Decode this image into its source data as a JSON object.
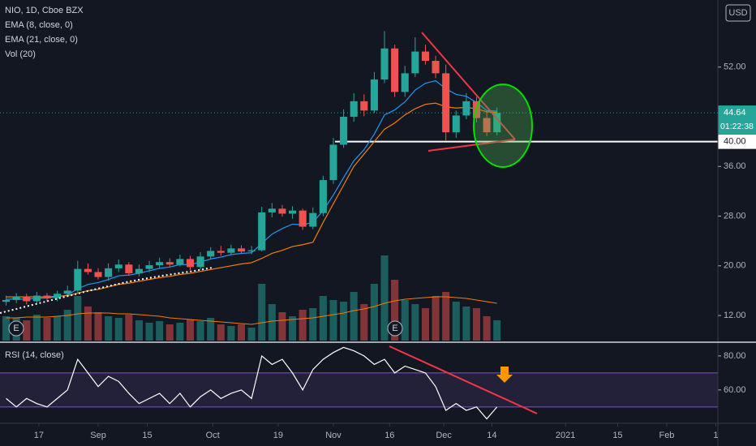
{
  "chart_data": {
    "type": "candlestick",
    "title": "NIO, 1D, Cboe BZX",
    "indicators": [
      "EMA (8, close, 0)",
      "EMA (21, close, 0)",
      "Vol (20)"
    ],
    "currency": "USD",
    "last_price": 44.64,
    "last_price_label": "44.64",
    "countdown": "01:22:38",
    "level": 40,
    "level_label": "40.00",
    "events": [
      "E",
      "E"
    ],
    "up_color": "#26a69a",
    "down_color": "#ef5350",
    "xlim": [
      -0.6,
      69.6
    ],
    "xticks": [
      {
        "value": 3.2,
        "label": "17"
      },
      {
        "value": 9.0,
        "label": "Sep"
      },
      {
        "value": 13.8,
        "label": "15"
      },
      {
        "value": 20.2,
        "label": "Oct"
      },
      {
        "value": 26.6,
        "label": "19"
      },
      {
        "value": 32.0,
        "label": "Nov"
      },
      {
        "value": 37.5,
        "label": "16"
      },
      {
        "value": 42.8,
        "label": "Dec"
      },
      {
        "value": 47.5,
        "label": "14"
      },
      {
        "value": 54.7,
        "label": "2021"
      },
      {
        "value": 59.8,
        "label": "15"
      },
      {
        "value": 64.6,
        "label": "Feb"
      },
      {
        "value": 69.4,
        "label": "1"
      }
    ],
    "ylim": [
      7.7,
      62.8
    ],
    "yticks": [
      {
        "value": 52,
        "label": "52.00"
      },
      {
        "value": 36,
        "label": "36.00"
      },
      {
        "value": 28,
        "label": "28.00"
      },
      {
        "value": 20,
        "label": "20.00"
      },
      {
        "value": 12,
        "label": "12.00"
      }
    ],
    "open": [
      14.2,
      14.5,
      15,
      14.3,
      15.2,
      14.8,
      15.5,
      16,
      19.5,
      19,
      18.2,
      19.6,
      20.2,
      18.8,
      19.5,
      20.1,
      20.6,
      20.2,
      21.1,
      19.8,
      21.5,
      22.4,
      22.1,
      22.8,
      22.3,
      22.5,
      28.6,
      29.2,
      28.4,
      28.9,
      26.3,
      28.5,
      33.8,
      39.5,
      44,
      46.5,
      45,
      50,
      55,
      48,
      51,
      54.5,
      53,
      51,
      41.5,
      44.2,
      46.5,
      43.8,
      41.5
    ],
    "high": [
      15.2,
      15.6,
      15.5,
      15.8,
      15.6,
      16,
      16.8,
      20.8,
      20.4,
      19.6,
      20.4,
      21,
      20.6,
      20.2,
      20.8,
      21.3,
      21.2,
      21.8,
      21.6,
      22.2,
      23,
      23.2,
      23.4,
      23.3,
      23.2,
      29.5,
      30.1,
      29.8,
      29.6,
      29.2,
      29.4,
      34.5,
      40.6,
      45.2,
      47.8,
      47.6,
      51.2,
      57.8,
      55.6,
      52.2,
      56.8,
      55.6,
      53.8,
      52.4,
      45,
      47.8,
      47.2,
      45,
      45.5
    ],
    "low": [
      13.6,
      14,
      13.8,
      14,
      14.2,
      14.3,
      15,
      15.7,
      18.6,
      17.8,
      17.6,
      19,
      18.4,
      18.3,
      19,
      19.6,
      19.8,
      19.9,
      19.3,
      19.4,
      21,
      21.6,
      21.8,
      22,
      21.9,
      22.3,
      27.8,
      27.9,
      27.6,
      25.8,
      25.9,
      28,
      33.2,
      39,
      43.2,
      44.1,
      44.6,
      49.4,
      47.2,
      47.2,
      50.4,
      52.4,
      50.2,
      40.2,
      40.6,
      43.6,
      43.1,
      40.9,
      41
    ],
    "close": [
      14.5,
      15,
      14.3,
      15.2,
      14.8,
      15.5,
      16,
      19.5,
      19,
      18.2,
      19.6,
      20.2,
      18.8,
      19.5,
      20.1,
      20.6,
      20.2,
      21.1,
      19.8,
      21.5,
      22.4,
      22.1,
      22.8,
      22.3,
      22.5,
      28.6,
      29.2,
      28.4,
      28.9,
      26.3,
      28.5,
      33.8,
      39.5,
      44,
      46.5,
      45,
      50,
      55,
      48,
      51,
      54.5,
      53,
      51,
      41.5,
      44.2,
      46.5,
      43.8,
      41.5,
      44.64
    ],
    "series": [
      {
        "name": "EMA (8, close, 0)",
        "color": "#2196f3",
        "values": [
          14.6,
          14.7,
          14.6,
          14.8,
          14.8,
          15,
          15.3,
          16.3,
          17,
          17.3,
          17.8,
          18.4,
          18.5,
          18.8,
          19.2,
          19.6,
          19.8,
          20.2,
          20.2,
          20.6,
          21.1,
          21.4,
          21.8,
          22,
          22.1,
          23.6,
          25.1,
          26,
          26.7,
          26.6,
          27,
          28.9,
          31.4,
          34.2,
          36.9,
          38.7,
          41.2,
          44.3,
          45.1,
          46.4,
          48.3,
          49.4,
          49.8,
          48.5,
          47.6,
          47.3,
          46.3,
          45,
          44.9
        ]
      },
      {
        "name": "EMA (21, close, 0)",
        "color": "#f57c00",
        "values": [
          15,
          15,
          15,
          15,
          15,
          15.1,
          15.2,
          15.6,
          16,
          16.2,
          16.6,
          17,
          17.2,
          17.5,
          17.8,
          18.1,
          18.3,
          18.6,
          18.8,
          19.1,
          19.4,
          19.7,
          20,
          20.3,
          20.5,
          21.2,
          22,
          22.5,
          23.1,
          23.4,
          23.8,
          27,
          30,
          33,
          36,
          38,
          40,
          42,
          43,
          44.3,
          45.3,
          46,
          46.2,
          45.6,
          45.4,
          45.5,
          45.3,
          44.8,
          44.7
        ]
      }
    ],
    "volume": {
      "vlim": [
        0,
        110
      ],
      "ma_color": "#f57c00",
      "values": [
        30,
        28,
        25,
        32,
        28,
        30,
        38,
        55,
        42,
        35,
        30,
        28,
        32,
        25,
        22,
        24,
        20,
        22,
        26,
        24,
        28,
        20,
        18,
        20,
        16,
        70,
        45,
        35,
        30,
        38,
        40,
        55,
        50,
        48,
        60,
        45,
        70,
        105,
        75,
        50,
        45,
        40,
        55,
        60,
        48,
        42,
        40,
        30,
        25
      ],
      "ma": [
        28,
        28,
        29,
        29,
        29,
        30,
        31,
        33,
        34,
        34,
        34,
        33,
        33,
        32,
        31,
        30,
        28,
        27,
        26,
        25,
        24,
        23,
        22,
        21,
        20,
        22,
        24,
        25,
        26,
        27,
        28,
        30,
        32,
        34,
        37,
        39,
        42,
        46,
        49,
        51,
        52,
        53,
        54,
        54,
        53,
        52,
        50,
        48,
        46
      ]
    },
    "rsi": {
      "title": "RSI (14, close)",
      "color": "#ffffff",
      "band": [
        70,
        50
      ],
      "band_color": "#7e57c2",
      "ylim": [
        40.4,
        87.1
      ],
      "yticks": [
        {
          "value": 80,
          "label": "80.00"
        },
        {
          "value": 60,
          "label": "60.00"
        }
      ],
      "values": [
        55,
        50,
        55,
        52,
        50,
        55,
        60,
        78,
        70,
        62,
        68,
        65,
        58,
        52,
        55,
        58,
        52,
        58,
        50,
        56,
        60,
        55,
        58,
        60,
        55,
        80,
        75,
        78,
        70,
        60,
        72,
        78,
        82,
        85,
        83,
        80,
        75,
        78,
        70,
        74,
        72,
        70,
        62,
        48,
        52,
        48,
        50,
        43,
        50
      ]
    }
  }
}
